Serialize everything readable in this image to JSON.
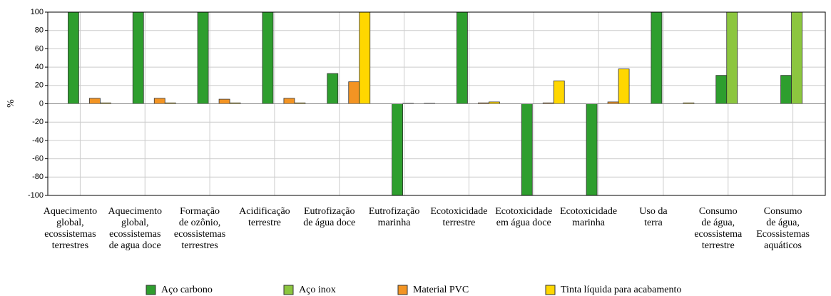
{
  "chart_data": {
    "type": "bar",
    "y_label": "%",
    "categories": [
      "Aquecimento\nglobal,\necossistemas\nterrestres",
      "Aquecimento\nglobal,\necossistemas\nde agua doce",
      "Formação\nde ozônio,\necossistemas\nterrestres",
      "Acidificação\nterrestre",
      "Eutrofização\nde água doce",
      "Eutrofização\nmarinha",
      "Ecotoxicidade\nterrestre",
      "Ecotoxicidade\nem água doce",
      "Ecotoxicidade\nmarinha",
      "Uso da\nterra",
      "Consumo\nde água,\necossistema\nterrestre",
      "Consumo\nde água,\nEcossistemas\naquáticos"
    ],
    "series": [
      {
        "name": "Aço carbono",
        "color": "#2e9e2e",
        "values": [
          100,
          100,
          100,
          100,
          33,
          -100,
          100,
          -100,
          -100,
          100,
          31,
          31
        ]
      },
      {
        "name": "Aço inox",
        "color": "#8cc63f",
        "values": [
          0,
          0,
          0,
          0,
          0,
          0.5,
          0,
          0,
          0,
          0,
          100,
          100
        ]
      },
      {
        "name": "Material PVC",
        "color": "#f39423",
        "values": [
          6,
          6,
          5,
          6,
          24,
          0,
          1,
          1,
          2,
          0,
          0,
          0
        ]
      },
      {
        "name": "Tinta líquida para acabamento",
        "color": "#ffd700",
        "values": [
          1,
          1,
          1,
          1,
          100,
          0.5,
          2,
          25,
          38,
          1,
          0,
          0
        ]
      }
    ],
    "ylim": [
      -100,
      100
    ],
    "yticks": [
      -100,
      -80,
      -60,
      -40,
      -20,
      0,
      20,
      40,
      60,
      80,
      100
    ],
    "grid": true
  }
}
